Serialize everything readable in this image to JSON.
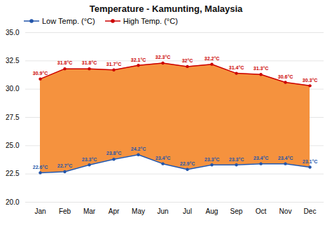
{
  "chart_data": {
    "type": "line",
    "title": "Temperature - Kamunting, Malaysia",
    "categories": [
      "Jan",
      "Feb",
      "Mar",
      "Apr",
      "May",
      "Jun",
      "Jul",
      "Aug",
      "Sep",
      "Oct",
      "Nov",
      "Dec"
    ],
    "series": [
      {
        "name": "Low Temp. (°C)",
        "color": "#2255aa",
        "marker": "circle",
        "values": [
          22.6,
          22.7,
          23.3,
          23.8,
          24.2,
          23.4,
          22.9,
          23.3,
          23.3,
          23.4,
          23.4,
          23.1
        ],
        "value_labels": [
          "22.6°C",
          "22.7°C",
          "23.3°C",
          "23.8°C",
          "24.2°C",
          "23.4°C",
          "22.9°C",
          "23.3°C",
          "23.3°C",
          "23.4°C",
          "23.4°C",
          "23.1°C"
        ]
      },
      {
        "name": "High Temp. (°C)",
        "color": "#cc0000",
        "marker": "circle",
        "values": [
          30.9,
          31.8,
          31.8,
          31.7,
          32.1,
          32.3,
          32.0,
          32.2,
          31.4,
          31.3,
          30.6,
          30.3
        ],
        "value_labels": [
          "30.9°C",
          "31.8°C",
          "31.8°C",
          "31.7°C",
          "32.1°C",
          "32.3°C",
          "32°C",
          "32.2°C",
          "31.4°C",
          "31.3°C",
          "30.6°C",
          "30.3°C"
        ]
      }
    ],
    "color": "#f5923e",
    "ylim": [
      20.0,
      35.0
    ],
    "yticks": [
      {
        "value": 20,
        "label": "20.0"
      },
      22.5,
      {
        "value": 25,
        "label": "25.0"
      },
      27.5,
      {
        "value": 30,
        "label": "30.0"
      },
      32.5,
      {
        "value": 35,
        "label": "35.0"
      }
    ],
    "grid": true,
    "legend": "top",
    "data_labels": true
  }
}
